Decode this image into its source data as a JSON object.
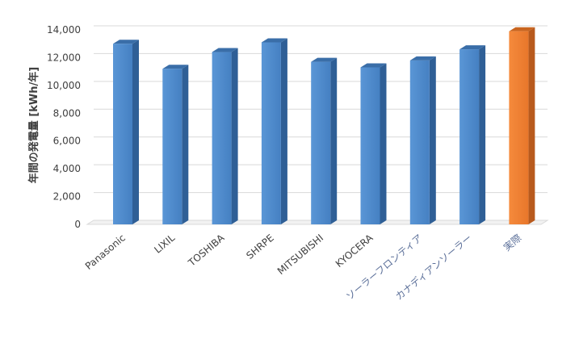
{
  "chart_data": {
    "type": "bar",
    "title": "",
    "xlabel": "",
    "ylabel": "年間の発電量 [kWh/年]",
    "ylim": [
      0,
      14000
    ],
    "yticks": [
      0,
      2000,
      4000,
      6000,
      8000,
      10000,
      12000,
      14000
    ],
    "ytick_labels": [
      "0",
      "2,000",
      "4,000",
      "6,000",
      "8,000",
      "10,000",
      "12,000",
      "14,000"
    ],
    "grid": true,
    "categories": [
      "Panasonic",
      "LIXIL",
      "TOSHIBA",
      "SHRPE",
      "MITSUBISHI",
      "KYOCERA",
      "ソーラーフロンティア",
      "カナディアンソーラー",
      "実際"
    ],
    "values": [
      13000,
      11200,
      12400,
      13100,
      11700,
      11300,
      11800,
      12600,
      13900
    ],
    "colors": {
      "series": "#4a86c8",
      "highlight": "#ed7d31",
      "grid": "#d9d9d9"
    }
  }
}
